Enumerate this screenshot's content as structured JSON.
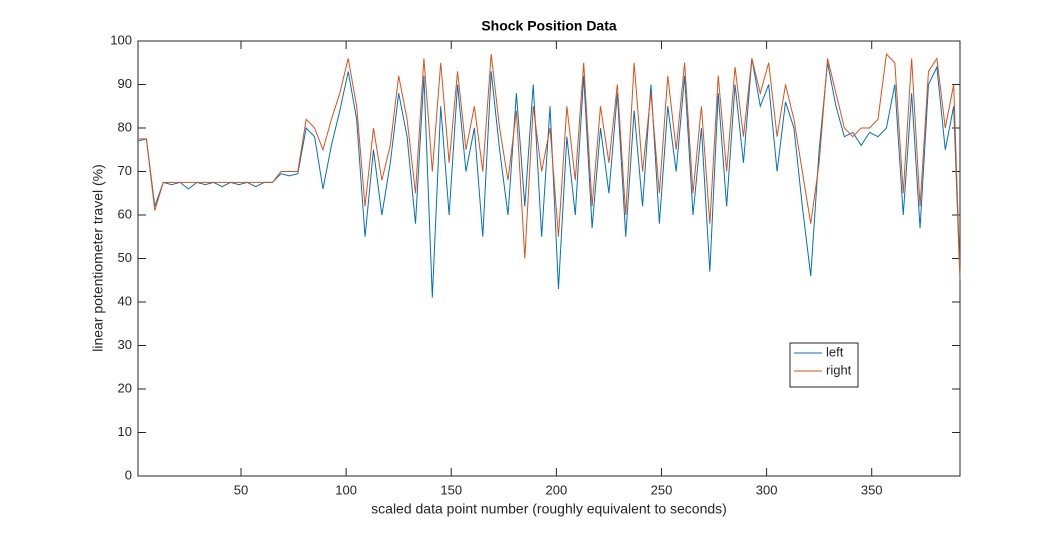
{
  "chart_data": {
    "type": "line",
    "title": "Shock Position Data",
    "xlabel": "scaled data point number (roughly equivalent to seconds)",
    "ylabel": "linear potentiometer travel (%)",
    "x": [
      1,
      5,
      9,
      13,
      17,
      21,
      25,
      29,
      33,
      37,
      41,
      45,
      49,
      53,
      57,
      61,
      65,
      69,
      73,
      77,
      81,
      85,
      89,
      93,
      97,
      101,
      105,
      109,
      113,
      117,
      121,
      125,
      129,
      133,
      137,
      141,
      145,
      149,
      153,
      157,
      161,
      165,
      169,
      173,
      177,
      181,
      185,
      189,
      193,
      197,
      201,
      205,
      209,
      213,
      217,
      221,
      225,
      229,
      233,
      237,
      241,
      245,
      249,
      253,
      257,
      261,
      265,
      269,
      273,
      277,
      281,
      285,
      289,
      293,
      297,
      301,
      305,
      309,
      313,
      317,
      321,
      325,
      329,
      333,
      337,
      341,
      345,
      349,
      353,
      357,
      361,
      365,
      369,
      373,
      377,
      381,
      385,
      389,
      392
    ],
    "series": [
      {
        "name": "left",
        "color": "#0072bd",
        "values": [
          77,
          77.5,
          62,
          67.5,
          67,
          67.5,
          66,
          67.5,
          67,
          67.5,
          66.5,
          67.5,
          67,
          67.5,
          66.5,
          67.5,
          67.5,
          69.5,
          69,
          69.5,
          80,
          78,
          66,
          76,
          84,
          93,
          82,
          55,
          75,
          60,
          72,
          88,
          78,
          58,
          92,
          41,
          85,
          60,
          90,
          70,
          80,
          55,
          93,
          75,
          60,
          88,
          62,
          90,
          55,
          85,
          43,
          78,
          60,
          92,
          57,
          80,
          65,
          88,
          55,
          84,
          62,
          90,
          58,
          85,
          70,
          92,
          60,
          80,
          47,
          88,
          62,
          90,
          72,
          96,
          85,
          90,
          70,
          86,
          80,
          62,
          46,
          75,
          95,
          85,
          78,
          79,
          76,
          79,
          78,
          80,
          90,
          60,
          88,
          57,
          90,
          94,
          75,
          85,
          45
        ]
      },
      {
        "name": "right",
        "color": "#d95319",
        "values": [
          77.5,
          77.5,
          61,
          67.5,
          67.5,
          67.5,
          67.5,
          67.5,
          67.5,
          67.5,
          67.5,
          67.5,
          67.5,
          67.5,
          67.5,
          67.5,
          67.5,
          70,
          70,
          70,
          82,
          80,
          75,
          82,
          88,
          96,
          85,
          62,
          80,
          68,
          76,
          92,
          82,
          65,
          96,
          70,
          95,
          72,
          93,
          75,
          85,
          70,
          97,
          80,
          68,
          84,
          50,
          85,
          70,
          80,
          55,
          85,
          68,
          95,
          62,
          85,
          72,
          90,
          60,
          95,
          70,
          88,
          65,
          92,
          75,
          95,
          65,
          85,
          58,
          92,
          70,
          94,
          78,
          96,
          88,
          95,
          78,
          90,
          82,
          70,
          58,
          72,
          96,
          88,
          80,
          78,
          80,
          80,
          82,
          97,
          95,
          65,
          96,
          62,
          93,
          96,
          80,
          90,
          46
        ]
      }
    ],
    "xlim": [
      1,
      392
    ],
    "ylim": [
      0,
      100
    ],
    "xticks": [
      50,
      100,
      150,
      200,
      250,
      300,
      350
    ],
    "yticks": [
      0,
      10,
      20,
      30,
      40,
      50,
      60,
      70,
      80,
      90,
      100
    ],
    "grid": false
  }
}
